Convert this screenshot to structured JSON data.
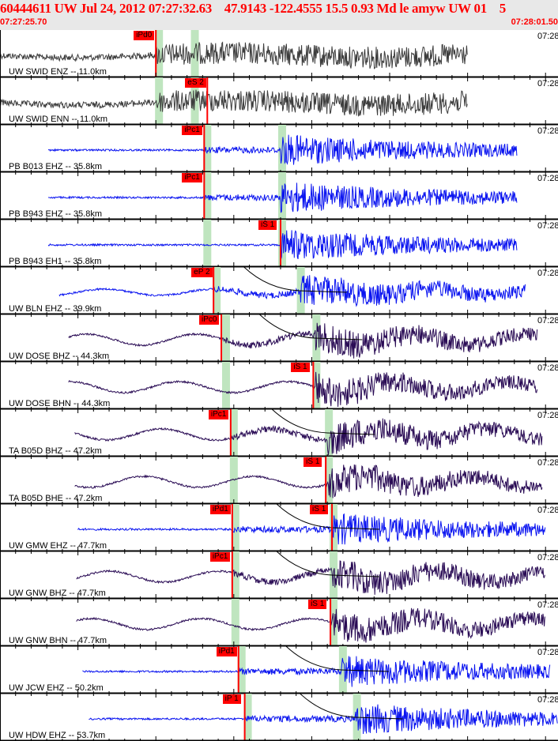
{
  "header": {
    "title": "60444611 UW Jul 24, 2012 07:27:32.63    47.9143 -122.4555 15.5 0.93 Md le amyw UW 01    5",
    "start_time": "07:27:25.70",
    "end_time": "07:28:01.50",
    "span_seconds": 35.8
  },
  "right_time_label": "07:28",
  "colors": {
    "gray": "#3c3c3c",
    "blue": "#0a14f0",
    "purple": "#2a0c55",
    "pick": "#ff0000",
    "band": "#bfe5bf"
  },
  "traces": [
    {
      "label": "UW SWID ENZ -- 11.0km",
      "color": "gray",
      "t0": 0.0,
      "t1": 30.0,
      "onset": 10.0,
      "picks": [
        {
          "label": "iPd0",
          "t": 10.0
        }
      ],
      "bands": [
        10.1,
        12.4
      ]
    },
    {
      "label": "UW SWID ENN -- 11.0km",
      "color": "gray",
      "t0": 0.0,
      "t1": 30.0,
      "onset": 10.0,
      "picks": [
        {
          "label": "eS 2",
          "t": 13.3
        }
      ],
      "bands": [
        10.1,
        12.4
      ]
    },
    {
      "label": "PB B013 EHZ -- 35.8km",
      "color": "blue",
      "t0": 3.1,
      "t1": 33.2,
      "onset": 13.1,
      "picks": [
        {
          "label": "iPc1",
          "t": 13.1
        }
      ],
      "bands": [
        13.2,
        18.0
      ]
    },
    {
      "label": "PB B943 EHZ -- 35.8km",
      "color": "blue",
      "t0": 3.1,
      "t1": 33.2,
      "onset": 13.1,
      "picks": [
        {
          "label": "iPc1",
          "t": 13.1
        }
      ],
      "bands": [
        13.2,
        18.0
      ]
    },
    {
      "label": "PB B943 EH1 -- 35.8km",
      "color": "blue",
      "t0": 3.1,
      "t1": 33.2,
      "onset": 18.0,
      "picks": [
        {
          "label": "iS 1",
          "t": 18.0
        }
      ],
      "bands": [
        13.2,
        18.0
      ]
    },
    {
      "label": "UW BLN EHZ -- 39.9km",
      "color": "blue",
      "t0": 3.8,
      "t1": 33.7,
      "onset": 13.7,
      "picks": [
        {
          "label": "eP 2",
          "t": 13.7
        }
      ],
      "bands": [
        13.8,
        19.2
      ]
    },
    {
      "label": "UW DOSE BHZ -- 44.3km",
      "color": "purple",
      "t0": 4.4,
      "t1": 34.5,
      "onset": 14.2,
      "picks": [
        {
          "label": "iPc0",
          "t": 14.2
        }
      ],
      "bands": [
        14.4,
        20.2
      ]
    },
    {
      "label": "UW DOSE BHN -- 44.3km",
      "color": "purple",
      "t0": 4.4,
      "t1": 34.5,
      "onset": 20.1,
      "picks": [
        {
          "label": "iS 1",
          "t": 20.1
        }
      ],
      "bands": [
        14.4,
        20.2
      ]
    },
    {
      "label": "TA B05D BHZ -- 47.2km",
      "color": "purple",
      "t0": 4.8,
      "t1": 34.8,
      "onset": 14.8,
      "picks": [
        {
          "label": "iPc1",
          "t": 14.8
        }
      ],
      "bands": [
        14.9,
        21.0
      ]
    },
    {
      "label": "TA B05D BHE -- 47.2km",
      "color": "purple",
      "t0": 4.8,
      "t1": 34.8,
      "onset": 20.9,
      "picks": [
        {
          "label": "iS 1",
          "t": 20.9
        }
      ],
      "bands": [
        14.9,
        21.0
      ]
    },
    {
      "label": "UW GMW EHZ -- 47.7km",
      "color": "blue",
      "t0": 5.0,
      "t1": 35.0,
      "onset": 14.9,
      "picks": [
        {
          "label": "iPd1",
          "t": 14.9
        },
        {
          "label": "iS 1",
          "t": 21.3
        }
      ],
      "bands": [
        15.0,
        21.3
      ]
    },
    {
      "label": "UW GNW BHZ -- 47.7km",
      "color": "purple",
      "t0": 4.9,
      "t1": 35.0,
      "onset": 14.9,
      "picks": [
        {
          "label": "iPc1",
          "t": 14.9
        }
      ],
      "bands": [
        15.0,
        21.3
      ]
    },
    {
      "label": "UW GNW BHN -- 47.7km",
      "color": "purple",
      "t0": 4.9,
      "t1": 35.0,
      "onset": 21.2,
      "picks": [
        {
          "label": "iS 1",
          "t": 21.2
        }
      ],
      "bands": [
        15.0,
        21.3
      ]
    },
    {
      "label": "UW JCW EHZ -- 50.2km",
      "color": "blue",
      "t0": 5.3,
      "t1": 35.3,
      "onset": 15.3,
      "picks": [
        {
          "label": "iPd1",
          "t": 15.3
        }
      ],
      "bands": [
        15.4,
        21.9
      ]
    },
    {
      "label": "UW HDW EHZ -- 53.7km",
      "color": "blue",
      "t0": 5.7,
      "t1": 35.8,
      "onset": 15.7,
      "picks": [
        {
          "label": "iP 1",
          "t": 15.7
        }
      ],
      "bands": [
        15.8,
        22.8
      ]
    }
  ]
}
